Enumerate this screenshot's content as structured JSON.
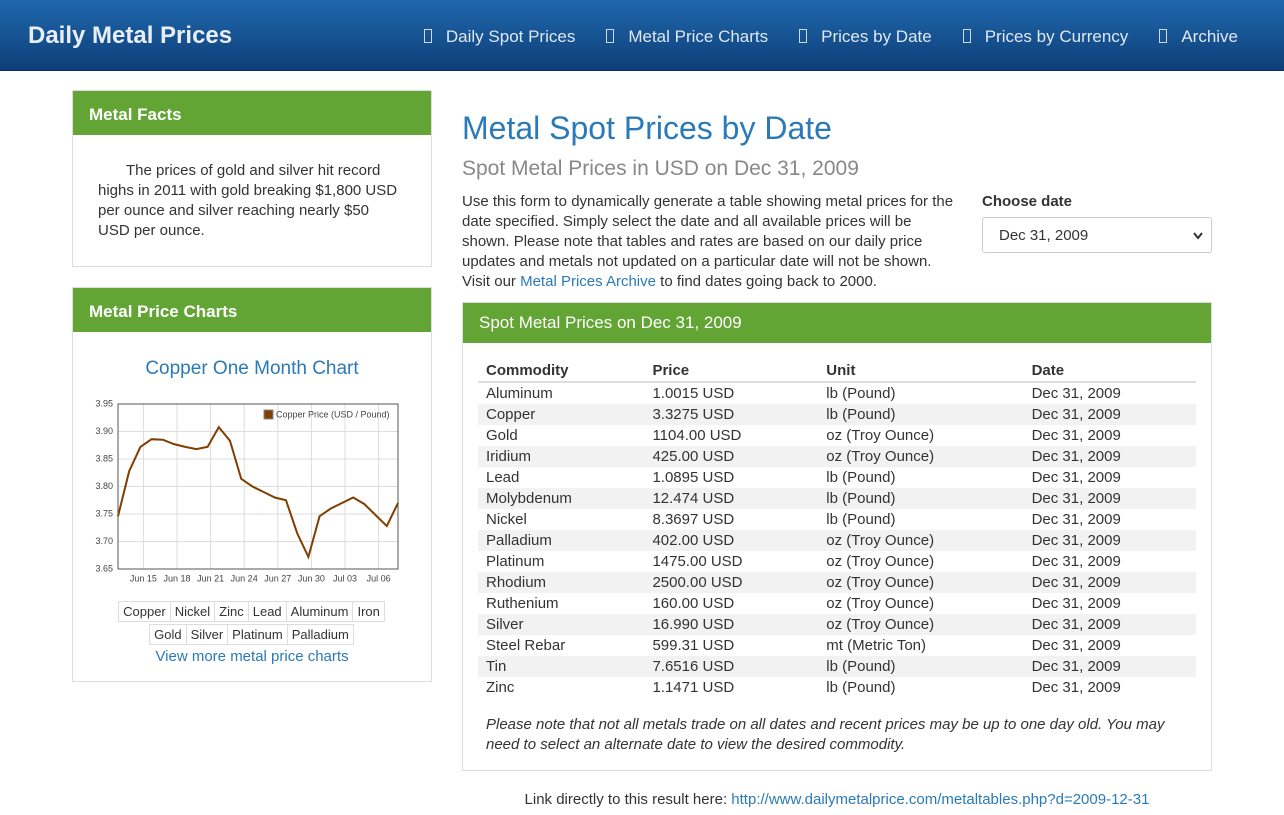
{
  "nav": {
    "brand": "Daily Metal Prices",
    "links": [
      "Daily Spot Prices",
      "Metal Price Charts",
      "Prices by Date",
      "Prices by Currency",
      "Archive"
    ]
  },
  "facts": {
    "title": "Metal Facts",
    "text": "The prices of gold and silver hit record highs in 2011 with gold breaking $1,800 USD per ounce and silver reaching nearly $50 USD per ounce."
  },
  "charts_panel": {
    "title": "Metal Price Charts",
    "chart_title": "Copper One Month Chart",
    "metals": [
      "Copper",
      "Nickel",
      "Zinc",
      "Lead",
      "Aluminum",
      "Iron",
      "Gold",
      "Silver",
      "Platinum",
      "Palladium"
    ],
    "more_link": "View more metal price charts"
  },
  "chart_data": {
    "type": "line",
    "categories": [
      null,
      null,
      "Jun 15",
      null,
      null,
      "Jun 18",
      null,
      null,
      "Jun 21",
      null,
      null,
      "Jun 24",
      null,
      null,
      "Jun 27",
      null,
      null,
      "Jun 30",
      null,
      null,
      "Jul 03",
      null,
      null,
      "Jul 06",
      null,
      null
    ],
    "series": [
      {
        "name": "Copper Price (USD / Pound)",
        "color": "#7f3f00",
        "values": [
          3.746,
          3.828,
          3.872,
          3.886,
          3.885,
          3.877,
          3.872,
          3.868,
          3.872,
          3.908,
          3.883,
          3.814,
          3.8,
          3.79,
          3.78,
          3.775,
          3.715,
          3.672,
          3.746,
          3.76,
          3.77,
          3.78,
          3.768,
          3.748,
          3.728,
          3.77
        ]
      }
    ],
    "ylim": [
      3.65,
      3.95
    ],
    "yticks": [
      3.65,
      {
        "value": 3.7,
        "label": "3.70"
      },
      3.75,
      {
        "value": 3.8,
        "label": "3.80"
      },
      3.85,
      {
        "value": 3.9,
        "label": "3.90"
      },
      3.95
    ],
    "grid": true,
    "legend": "top-right"
  },
  "main": {
    "title": "Metal Spot Prices by Date",
    "subtitle": "Spot Metal Prices in USD on Dec 31, 2009",
    "intro": {
      "before": "Use this form to dynamically generate a table showing metal prices for the date specified. Simply select the date and all available prices will be shown. Please note that tables and rates are based on our daily price updates and metals not updated on a particular date will not be shown. Visit our ",
      "link": "Metal Prices Archive",
      "after": " to find dates going back to 2000."
    },
    "date_label": "Choose date",
    "date_value": "Dec 31, 2009",
    "panel_title": "Spot Metal Prices on Dec 31, 2009",
    "table": {
      "header": [
        "Commodity",
        "Price",
        "Unit",
        "Date"
      ],
      "rows": [
        [
          "Aluminum",
          "1.0015 USD",
          "lb (Pound)",
          "Dec 31, 2009"
        ],
        [
          "Copper",
          "3.3275 USD",
          "lb (Pound)",
          "Dec 31, 2009"
        ],
        [
          "Gold",
          "1104.00 USD",
          "oz (Troy Ounce)",
          "Dec 31, 2009"
        ],
        [
          "Iridium",
          "425.00 USD",
          "oz (Troy Ounce)",
          "Dec 31, 2009"
        ],
        [
          "Lead",
          "1.0895 USD",
          "lb (Pound)",
          "Dec 31, 2009"
        ],
        [
          "Molybdenum",
          "12.474 USD",
          "lb (Pound)",
          "Dec 31, 2009"
        ],
        [
          "Nickel",
          "8.3697 USD",
          "lb (Pound)",
          "Dec 31, 2009"
        ],
        [
          "Palladium",
          "402.00 USD",
          "oz (Troy Ounce)",
          "Dec 31, 2009"
        ],
        [
          "Platinum",
          "1475.00 USD",
          "oz (Troy Ounce)",
          "Dec 31, 2009"
        ],
        [
          "Rhodium",
          "2500.00 USD",
          "oz (Troy Ounce)",
          "Dec 31, 2009"
        ],
        [
          "Ruthenium",
          "160.00 USD",
          "oz (Troy Ounce)",
          "Dec 31, 2009"
        ],
        [
          "Silver",
          "16.990 USD",
          "oz (Troy Ounce)",
          "Dec 31, 2009"
        ],
        [
          "Steel Rebar",
          "599.31 USD",
          "mt (Metric Ton)",
          "Dec 31, 2009"
        ],
        [
          "Tin",
          "7.6516 USD",
          "lb (Pound)",
          "Dec 31, 2009"
        ],
        [
          "Zinc",
          "1.1471 USD",
          "lb (Pound)",
          "Dec 31, 2009"
        ]
      ]
    },
    "note": "Please note that not all metals trade on all dates and recent prices may be up to one day old. You may need to select an alternate date to view the desired commodity.",
    "direct_label": "Link directly to this result here:",
    "direct_url": "http://www.dailymetalprice.com/metaltables.php?d=2009-12-31"
  }
}
